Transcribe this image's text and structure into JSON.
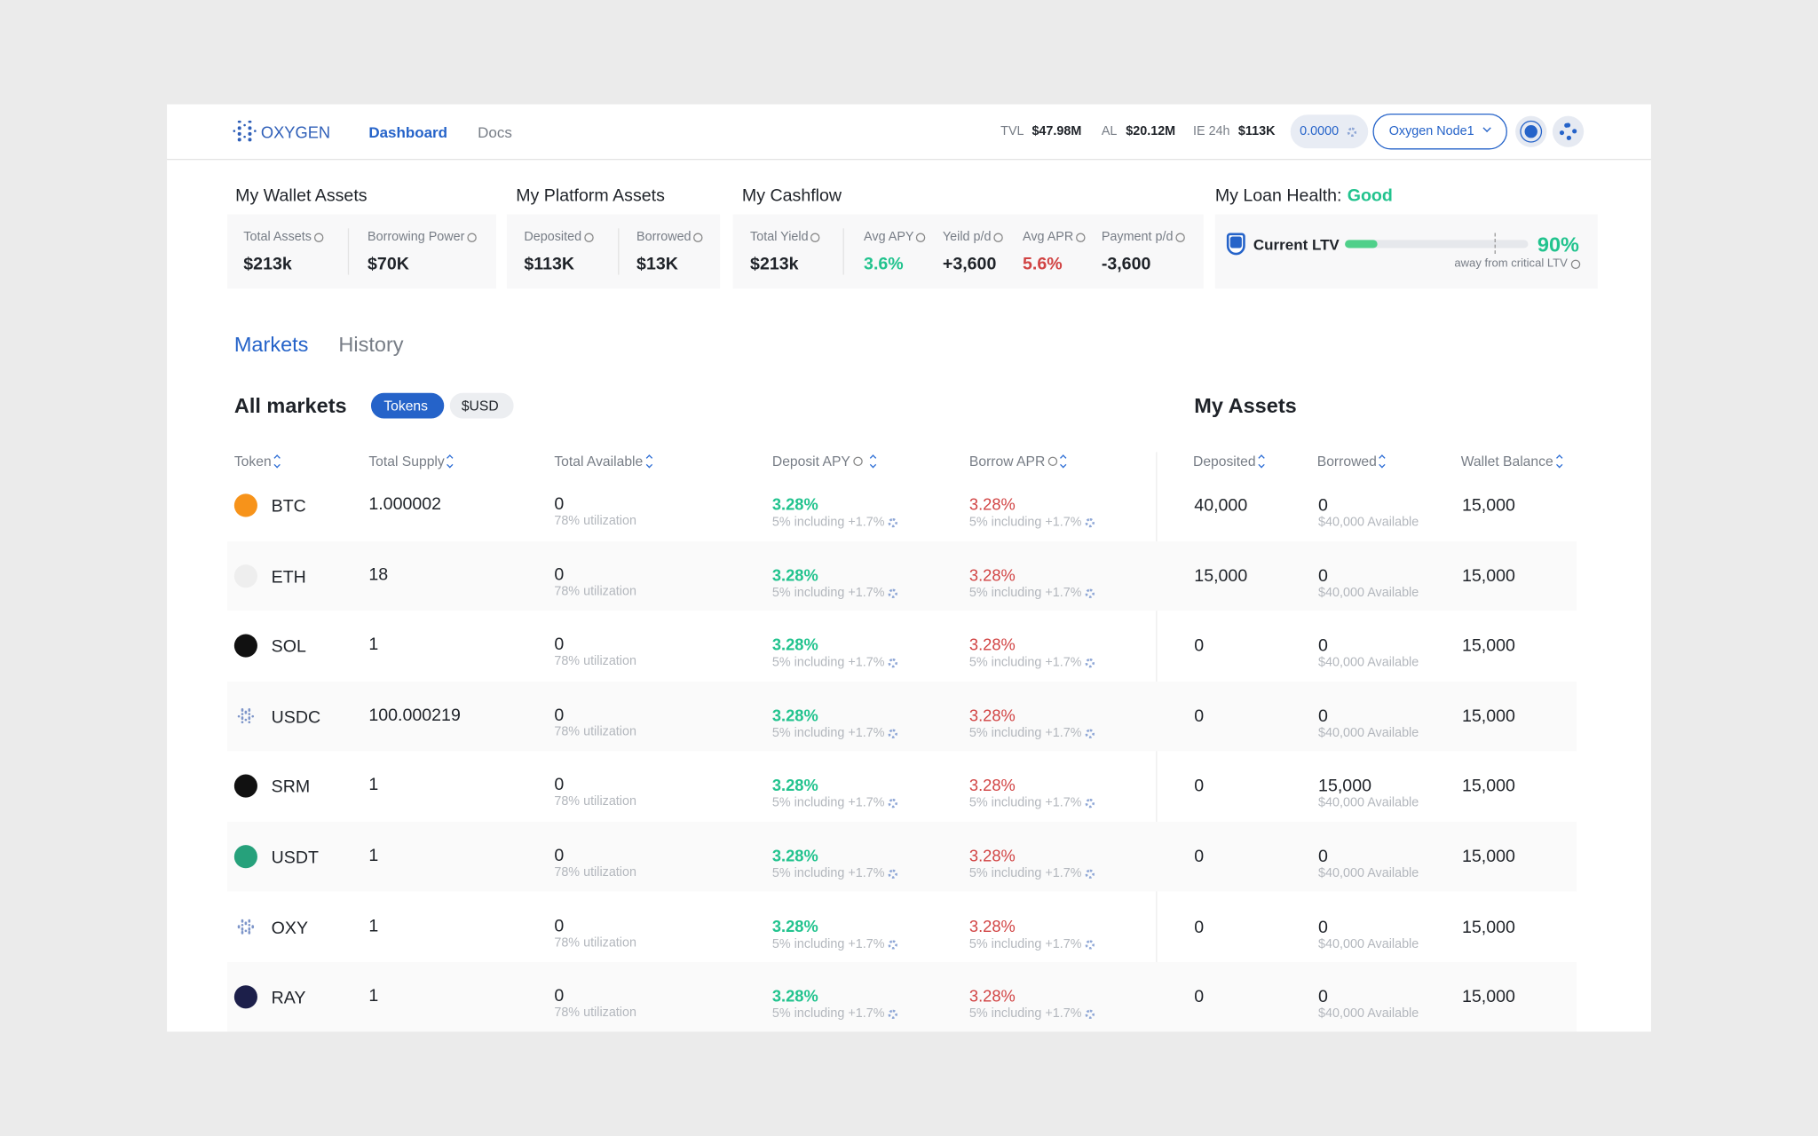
{
  "header": {
    "logo": "OXYGEN",
    "nav": [
      "Dashboard",
      "Docs"
    ],
    "stats": [
      {
        "label": "TVL",
        "value": "$47.98M"
      },
      {
        "label": "AL",
        "value": "$20.12M"
      },
      {
        "label": "IE 24h",
        "value": "$113K"
      }
    ],
    "balance": "0.0000",
    "node": "Oxygen Node1"
  },
  "summary": [
    {
      "title": "My Wallet Assets",
      "items": [
        {
          "label": "Total Assets",
          "value": "$213k"
        },
        {
          "label": "Borrowing Power",
          "value": "$70K"
        }
      ]
    },
    {
      "title": "My Platform Assets",
      "items": [
        {
          "label": "Deposited",
          "value": "$113K"
        },
        {
          "label": "Borrowed",
          "value": "$13K"
        }
      ]
    },
    {
      "title": "My Cashflow",
      "items": [
        {
          "label": "Total Yield",
          "value": "$213k"
        },
        {
          "label": "Avg APY",
          "value": "3.6%"
        },
        {
          "label": "Yeild p/d",
          "value": "+3,600"
        },
        {
          "label": "Avg APR",
          "value": "5.6%"
        },
        {
          "label": "Payment p/d",
          "value": "-3,600"
        }
      ]
    }
  ],
  "loan_health": {
    "title": "My Loan Health:",
    "status": "Good",
    "ltv_label": "Current LTV",
    "ltv_value": "90%",
    "note": "away from critical LTV"
  },
  "tabs": [
    "Markets",
    "History"
  ],
  "markets": {
    "title": "All markets",
    "toggles": [
      "Tokens",
      "$USD"
    ],
    "assets_title": "My Assets",
    "columns": [
      "Token",
      "Total Supply",
      "Total Available",
      "Deposit APY",
      "Borrow APR",
      "Deposited",
      "Borrowed",
      "Wallet Balance"
    ],
    "rows": [
      {
        "token": "BTC",
        "supply": "1.000002",
        "available": "0",
        "utilization": "78% utilization",
        "deposit_apy": "3.28%",
        "deposit_note": "5% including +1.7%",
        "borrow_apr": "3.28%",
        "borrow_note": "5% including +1.7%",
        "deposited": "40,000",
        "borrowed": "0",
        "borrowed_note": "$40,000 Available",
        "wallet_balance": "15,000"
      },
      {
        "token": "ETH",
        "supply": "18",
        "available": "0",
        "utilization": "78% utilization",
        "deposit_apy": "3.28%",
        "deposit_note": "5% including +1.7%",
        "borrow_apr": "3.28%",
        "borrow_note": "5% including +1.7%",
        "deposited": "15,000",
        "borrowed": "0",
        "borrowed_note": "$40,000 Available",
        "wallet_balance": "15,000"
      },
      {
        "token": "SOL",
        "supply": "1",
        "available": "0",
        "utilization": "78% utilization",
        "deposit_apy": "3.28%",
        "deposit_note": "5% including +1.7%",
        "borrow_apr": "3.28%",
        "borrow_note": "5% including +1.7%",
        "deposited": "0",
        "borrowed": "0",
        "borrowed_note": "$40,000 Available",
        "wallet_balance": "15,000"
      },
      {
        "token": "USDC",
        "supply": "100.000219",
        "available": "0",
        "utilization": "78% utilization",
        "deposit_apy": "3.28%",
        "deposit_note": "5% including +1.7%",
        "borrow_apr": "3.28%",
        "borrow_note": "5% including +1.7%",
        "deposited": "0",
        "borrowed": "0",
        "borrowed_note": "$40,000 Available",
        "wallet_balance": "15,000"
      },
      {
        "token": "SRM",
        "supply": "1",
        "available": "0",
        "utilization": "78% utilization",
        "deposit_apy": "3.28%",
        "deposit_note": "5% including +1.7%",
        "borrow_apr": "3.28%",
        "borrow_note": "5% including +1.7%",
        "deposited": "0",
        "borrowed": "15,000",
        "borrowed_note": "$40,000 Available",
        "wallet_balance": "15,000"
      },
      {
        "token": "USDT",
        "supply": "1",
        "available": "0",
        "utilization": "78% utilization",
        "deposit_apy": "3.28%",
        "deposit_note": "5% including +1.7%",
        "borrow_apr": "3.28%",
        "borrow_note": "5% including +1.7%",
        "deposited": "0",
        "borrowed": "0",
        "borrowed_note": "$40,000 Available",
        "wallet_balance": "15,000"
      },
      {
        "token": "OXY",
        "supply": "1",
        "available": "0",
        "utilization": "78% utilization",
        "deposit_apy": "3.28%",
        "deposit_note": "5% including +1.7%",
        "borrow_apr": "3.28%",
        "borrow_note": "5% including +1.7%",
        "deposited": "0",
        "borrowed": "0",
        "borrowed_note": "$40,000 Available",
        "wallet_balance": "15,000"
      },
      {
        "token": "RAY",
        "supply": "1",
        "available": "0",
        "utilization": "78% utilization",
        "deposit_apy": "3.28%",
        "deposit_note": "5% including +1.7%",
        "borrow_apr": "3.28%",
        "borrow_note": "5% including +1.7%",
        "deposited": "0",
        "borrowed": "0",
        "borrowed_note": "$40,000 Available",
        "wallet_balance": "15,000"
      }
    ]
  }
}
